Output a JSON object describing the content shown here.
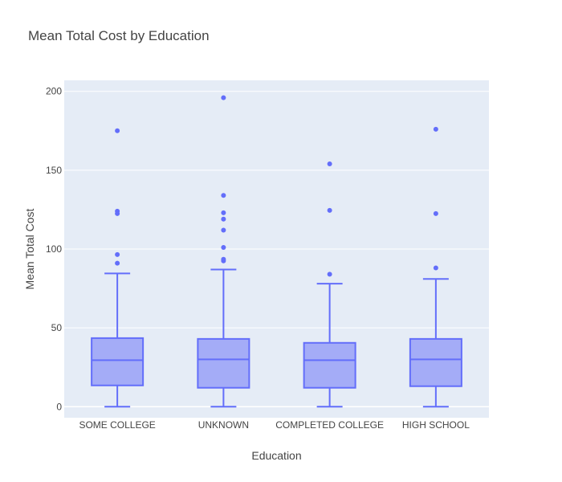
{
  "chart_data": {
    "type": "box",
    "title": "Mean Total Cost by Education",
    "xlabel": "Education",
    "ylabel": "Mean Total Cost",
    "ylim": [
      -7,
      207
    ],
    "yticks": [
      0,
      50,
      100,
      150,
      200
    ],
    "grid": true,
    "categories": [
      "SOME COLLEGE",
      "UNKNOWN",
      "COMPLETED COLLEGE",
      "HIGH SCHOOL"
    ],
    "boxes": [
      {
        "min": 0,
        "q1": 13.5,
        "median": 29.5,
        "q3": 43.5,
        "max": 84.5,
        "outliers": [
          175,
          124,
          122.5,
          96.5,
          91
        ]
      },
      {
        "min": 0,
        "q1": 12,
        "median": 30,
        "q3": 43,
        "max": 87,
        "outliers": [
          196,
          134,
          123,
          119,
          112,
          101,
          93.5,
          92.5
        ]
      },
      {
        "min": 0,
        "q1": 12,
        "median": 29.5,
        "q3": 40.5,
        "max": 78,
        "outliers": [
          154,
          124.5,
          84
        ]
      },
      {
        "min": 0,
        "q1": 13,
        "median": 30,
        "q3": 43,
        "max": 81,
        "outliers": [
          176,
          122.5,
          88
        ]
      }
    ],
    "colors": {
      "fill": "#a4acf7",
      "line": "#636efa",
      "plot_bg": "#e5ecf6",
      "grid": "#ffffff"
    }
  }
}
